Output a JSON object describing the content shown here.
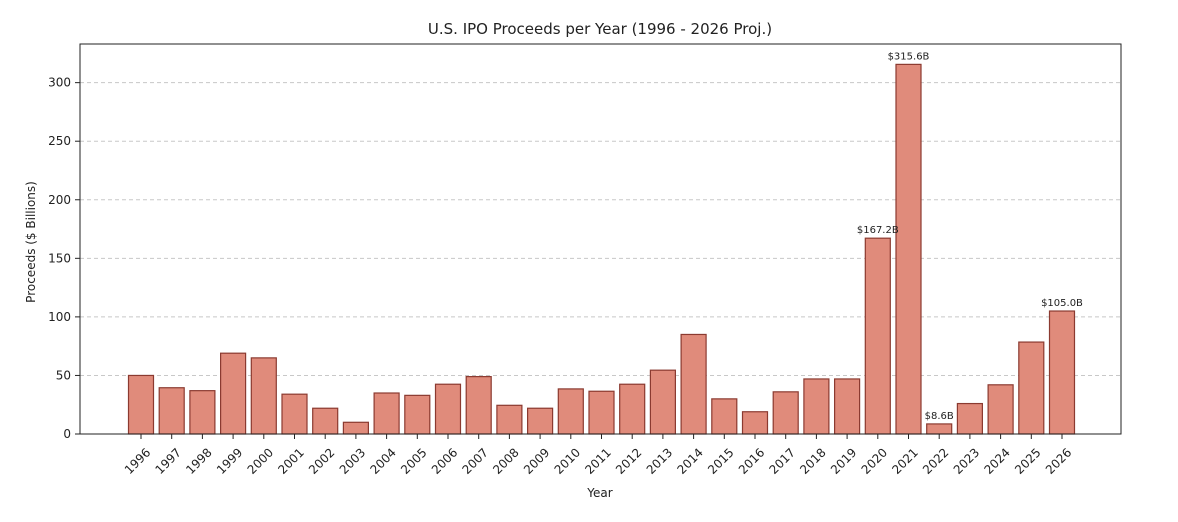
{
  "chart_data": {
    "type": "bar",
    "title": "U.S. IPO Proceeds per Year (1996 - 2026 Proj.)",
    "xlabel": "Year",
    "ylabel": "Proceeds ($ Billions)",
    "ylim": [
      0,
      333
    ],
    "yticks": [
      0,
      50,
      100,
      150,
      200,
      250,
      300
    ],
    "grid": "horizontal-dashed",
    "categories": [
      "1996",
      "1997",
      "1998",
      "1999",
      "2000",
      "2001",
      "2002",
      "2003",
      "2004",
      "2005",
      "2006",
      "2007",
      "2008",
      "2009",
      "2010",
      "2011",
      "2012",
      "2013",
      "2014",
      "2015",
      "2016",
      "2017",
      "2018",
      "2019",
      "2020",
      "2021",
      "2022",
      "2023",
      "2024",
      "2025",
      "2026"
    ],
    "values": [
      50,
      39.5,
      37,
      69,
      65,
      34,
      22,
      10,
      35,
      33,
      42.5,
      49,
      24.5,
      22,
      38.5,
      36.5,
      42.5,
      54.5,
      85,
      30,
      19,
      36,
      47,
      47,
      167.2,
      315.6,
      8.6,
      26,
      42,
      78.5,
      105.0
    ],
    "data_labels": [
      {
        "category": "2020",
        "text": "$167.2B"
      },
      {
        "category": "2021",
        "text": "$315.6B"
      },
      {
        "category": "2022",
        "text": "$8.6B"
      },
      {
        "category": "2026",
        "text": "$105.0B"
      }
    ],
    "colors": {
      "bar_fill": "#e08b7b",
      "bar_edge": "#8b3a30"
    }
  }
}
